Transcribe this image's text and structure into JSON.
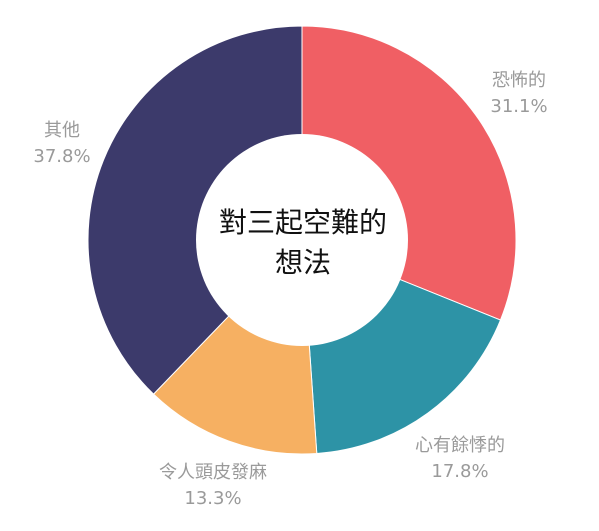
{
  "chart_data": {
    "type": "pie",
    "donut": true,
    "title": "",
    "center_text": [
      "對三起空難的",
      "想法"
    ],
    "legend": "none",
    "slices": [
      {
        "label": "恐怖的",
        "value": 31.1,
        "display": "31.1%",
        "color": "#f05f64"
      },
      {
        "label": "心有餘悸的",
        "value": 17.8,
        "display": "17.8%",
        "color": "#2d93a6"
      },
      {
        "label": "令人頭皮發麻",
        "value": 13.3,
        "display": "13.3%",
        "color": "#f6b062"
      },
      {
        "label": "其他",
        "value": 37.8,
        "display": "37.8%",
        "color": "#3c3a6b"
      }
    ]
  }
}
